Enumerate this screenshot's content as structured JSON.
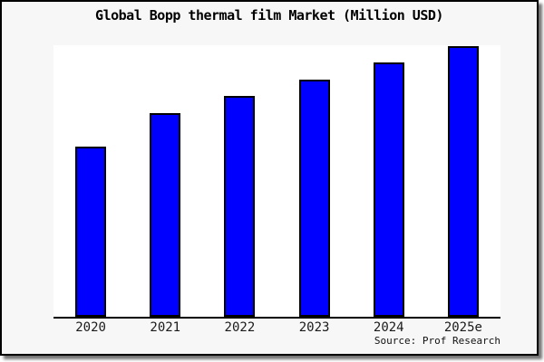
{
  "window": {
    "background_color": "#f7f7f7",
    "plot_background_color": "#ffffff",
    "frame_border_color": "#000000"
  },
  "chart_data": {
    "type": "bar",
    "title": "Global Bopp thermal film Market (Million USD)",
    "categories": [
      "2020",
      "2021",
      "2022",
      "2023",
      "2024",
      "2025e"
    ],
    "values": [
      188,
      225,
      244,
      262,
      281,
      299
    ],
    "value_note": "y-axis has no tick labels or gridlines; values are relative bar heights estimated in pixels against a 300px plot height",
    "ylim": [
      0,
      300
    ],
    "xlabel": "",
    "ylabel": "",
    "grid": false,
    "legend": false,
    "bar_color": "#0000ff",
    "bar_border_color": "#000000",
    "axis_color": "#000000",
    "source": "Source: Prof Research"
  }
}
